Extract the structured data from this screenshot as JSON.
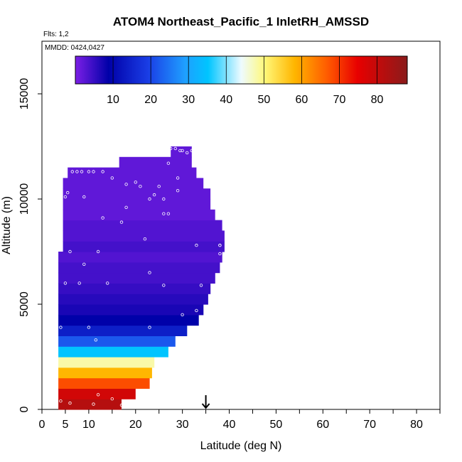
{
  "chart_data": {
    "type": "heatmap",
    "title": "ATOM4 Northeast_Pacific_1 InletRH_AMSSD",
    "flights_label": "Flts: 1,2",
    "date_label": "MMDD: 0424,0427",
    "xlabel": "Latitude (deg N)",
    "ylabel": "Altitude (m)",
    "xlim": [
      0,
      85
    ],
    "ylim": [
      0,
      17500
    ],
    "x_ticks": [
      0,
      5,
      10,
      20,
      30,
      40,
      50,
      60,
      70,
      80
    ],
    "x_tick_labels": [
      "0",
      "5",
      "10",
      "20",
      "30",
      "40",
      "50",
      "60",
      "70",
      "80"
    ],
    "y_ticks": [
      0,
      5000,
      10000,
      15000
    ],
    "y_tick_labels": [
      "0",
      "5000",
      "10000",
      "15000"
    ],
    "colorbar": {
      "range": [
        0,
        88
      ],
      "ticks": [
        10,
        20,
        30,
        40,
        50,
        60,
        70,
        80
      ],
      "tick_labels": [
        "10",
        "20",
        "30",
        "40",
        "50",
        "60",
        "70",
        "80"
      ]
    },
    "marker_latitude": 35,
    "altitude_rows": [
      {
        "alt": 0,
        "lat_min": 3.5,
        "lat_max": 17,
        "rh": 82
      },
      {
        "alt": 500,
        "lat_min": 3.5,
        "lat_max": 20,
        "rh": 78
      },
      {
        "alt": 1000,
        "lat_min": 3.5,
        "lat_max": 23,
        "rh": 68
      },
      {
        "alt": 1500,
        "lat_min": 3.5,
        "lat_max": 23.5,
        "rh": 58
      },
      {
        "alt": 2000,
        "lat_min": 3.5,
        "lat_max": 24,
        "rh": 48
      },
      {
        "alt": 2500,
        "lat_min": 3.5,
        "lat_max": 27,
        "rh": 35
      },
      {
        "alt": 3000,
        "lat_min": 3.5,
        "lat_max": 28.5,
        "rh": 22
      },
      {
        "alt": 3500,
        "lat_min": 3.5,
        "lat_max": 31,
        "rh": 14
      },
      {
        "alt": 4000,
        "lat_min": 3.5,
        "lat_max": 33.5,
        "rh": 9
      },
      {
        "alt": 4500,
        "lat_min": 3.5,
        "lat_max": 34.5,
        "rh": 7
      },
      {
        "alt": 5000,
        "lat_min": 3.5,
        "lat_max": 35.5,
        "rh": 6
      },
      {
        "alt": 5500,
        "lat_min": 3.5,
        "lat_max": 36,
        "rh": 5
      },
      {
        "alt": 6000,
        "lat_min": 3.5,
        "lat_max": 37,
        "rh": 4
      },
      {
        "alt": 6500,
        "lat_min": 3.5,
        "lat_max": 38,
        "rh": 4
      },
      {
        "alt": 7000,
        "lat_min": 3.5,
        "lat_max": 38.5,
        "rh": 3
      },
      {
        "alt": 7500,
        "lat_min": 4.5,
        "lat_max": 39,
        "rh": 4
      },
      {
        "alt": 8000,
        "lat_min": 4.5,
        "lat_max": 39,
        "rh": 3
      },
      {
        "alt": 8500,
        "lat_min": 4.5,
        "lat_max": 38.5,
        "rh": 3
      },
      {
        "alt": 9000,
        "lat_min": 4.5,
        "lat_max": 37,
        "rh": 2
      },
      {
        "alt": 9500,
        "lat_min": 4.5,
        "lat_max": 36,
        "rh": 2
      },
      {
        "alt": 10000,
        "lat_min": 4.5,
        "lat_max": 36,
        "rh": 2
      },
      {
        "alt": 10500,
        "lat_min": 4.5,
        "lat_max": 34.5,
        "rh": 2
      },
      {
        "alt": 11000,
        "lat_min": 5.5,
        "lat_max": 33,
        "rh": 2
      },
      {
        "alt": 11500,
        "lat_min": 16.5,
        "lat_max": 32,
        "rh": 2
      },
      {
        "alt": 12000,
        "lat_min": 27.5,
        "lat_max": 32,
        "rh": 2
      }
    ],
    "points": [
      [
        4,
        400
      ],
      [
        6,
        300
      ],
      [
        11,
        250
      ],
      [
        15,
        500
      ],
      [
        17,
        200
      ],
      [
        12,
        700
      ],
      [
        4,
        3900
      ],
      [
        10,
        3900
      ],
      [
        11.5,
        3300
      ],
      [
        23,
        3900
      ],
      [
        30,
        4500
      ],
      [
        33,
        4700
      ],
      [
        5,
        6000
      ],
      [
        9,
        6900
      ],
      [
        12,
        7500
      ],
      [
        14,
        6000
      ],
      [
        23,
        6500
      ],
      [
        26,
        5900
      ],
      [
        34,
        5900
      ],
      [
        33,
        7800
      ],
      [
        38,
        7800
      ],
      [
        38,
        7400
      ],
      [
        38,
        7800
      ],
      [
        6,
        7500
      ],
      [
        8,
        6000
      ],
      [
        9,
        10100
      ],
      [
        13,
        9100
      ],
      [
        17,
        8900
      ],
      [
        18,
        9600
      ],
      [
        22,
        8100
      ],
      [
        26,
        9300
      ],
      [
        26,
        10000
      ],
      [
        27,
        9300
      ],
      [
        18,
        10700
      ],
      [
        20,
        10800
      ],
      [
        21,
        10600
      ],
      [
        23,
        10000
      ],
      [
        25,
        10600
      ],
      [
        29,
        10400
      ],
      [
        29,
        11000
      ],
      [
        5,
        10100
      ],
      [
        5.5,
        10300
      ],
      [
        6.5,
        11300
      ],
      [
        7.5,
        11300
      ],
      [
        8.5,
        11300
      ],
      [
        10,
        11300
      ],
      [
        11,
        11300
      ],
      [
        13,
        11300
      ],
      [
        15,
        11000
      ],
      [
        24,
        10200
      ],
      [
        27,
        11700
      ],
      [
        27.5,
        12400
      ],
      [
        28.5,
        12400
      ],
      [
        29.5,
        12300
      ],
      [
        30,
        12300
      ],
      [
        31,
        12200
      ],
      [
        32,
        12300
      ]
    ]
  }
}
